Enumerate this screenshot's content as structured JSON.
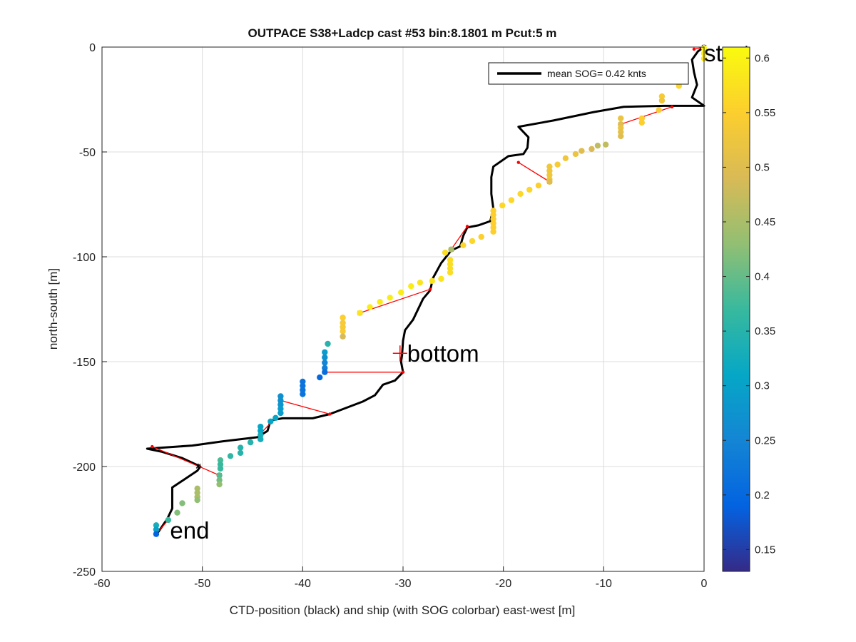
{
  "chart_data": {
    "type": "scatter",
    "title": "OUTPACE S38+Ladcp cast #53 bin:8.1801 m  Pcut:5 m",
    "xlabel": "CTD-position (black) and ship (with SOG colorbar) east-west [m]",
    "ylabel": "north-south [m]",
    "xlim": [
      -60,
      0
    ],
    "ylim": [
      -250,
      0
    ],
    "xticks": [
      "-60",
      "-50",
      "-40",
      "-30",
      "-20",
      "-10",
      "0"
    ],
    "yticks": [
      "0",
      "-50",
      "-100",
      "-150",
      "-200",
      "-250"
    ],
    "grid": true,
    "legend": {
      "position": "top-right",
      "entry": "mean SOG=  0.42 knts",
      "color": "#000000"
    },
    "colorbar": {
      "label_ticks": [
        "0.6",
        "0.55",
        "0.5",
        "0.45",
        "0.4",
        "0.35",
        "0.3",
        "0.25",
        "0.2",
        "0.15"
      ],
      "range": [
        0.13,
        0.61
      ],
      "colormap": [
        "#352a87",
        "#0363e1",
        "#1485d4",
        "#06a7c6",
        "#38b99e",
        "#92bf73",
        "#d9ba56",
        "#fcce2e",
        "#f9fb0e"
      ]
    },
    "annotations": [
      {
        "text": "start",
        "x": 0,
        "y": 0
      },
      {
        "text": "bottom",
        "x": -30.3,
        "y": -146
      },
      {
        "text": "end",
        "x": -54.5,
        "y": -232
      }
    ],
    "series": [
      {
        "kind": "ctd_track",
        "color": "#000000",
        "points": [
          [
            0,
            0
          ],
          [
            -0.6,
            -2
          ],
          [
            -1.2,
            -6
          ],
          [
            -1,
            -12
          ],
          [
            -0.7,
            -18
          ],
          [
            -1.2,
            -24
          ],
          [
            0,
            -28
          ],
          [
            -4,
            -28
          ],
          [
            -8,
            -28.5
          ],
          [
            -11,
            -31
          ],
          [
            -15,
            -35
          ],
          [
            -18.5,
            -38
          ],
          [
            -17.5,
            -43
          ],
          [
            -17.6,
            -48
          ],
          [
            -18,
            -51
          ],
          [
            -19.5,
            -52
          ],
          [
            -21,
            -57
          ],
          [
            -21.2,
            -62
          ],
          [
            -21.2,
            -70
          ],
          [
            -21,
            -77
          ],
          [
            -21.3,
            -83
          ],
          [
            -22.5,
            -85
          ],
          [
            -23.6,
            -86
          ],
          [
            -24,
            -90
          ],
          [
            -24.3,
            -95
          ],
          [
            -25.2,
            -97
          ],
          [
            -26.2,
            -103
          ],
          [
            -27,
            -110
          ],
          [
            -27.3,
            -116
          ],
          [
            -28,
            -120
          ],
          [
            -29,
            -130
          ],
          [
            -29.8,
            -135
          ],
          [
            -30,
            -140
          ],
          [
            -30.1,
            -147
          ],
          [
            -30.2,
            -150
          ],
          [
            -30,
            -155
          ],
          [
            -30.8,
            -159
          ],
          [
            -32,
            -161
          ],
          [
            -32.8,
            -166
          ],
          [
            -34,
            -169
          ],
          [
            -37.3,
            -175
          ],
          [
            -39,
            -177
          ],
          [
            -42,
            -177
          ],
          [
            -43.2,
            -178
          ],
          [
            -43.5,
            -183
          ],
          [
            -44.5,
            -186
          ],
          [
            -48,
            -188
          ],
          [
            -51,
            -190
          ],
          [
            -55.5,
            -191.5
          ],
          [
            -54,
            -193
          ],
          [
            -52,
            -196
          ],
          [
            -50.2,
            -200
          ],
          [
            -50.5,
            -202
          ],
          [
            -53,
            -210
          ],
          [
            -53,
            -220
          ],
          [
            -53.5,
            -225
          ],
          [
            -54.5,
            -232
          ]
        ]
      },
      {
        "kind": "ctd_ship_links",
        "color": "#ff0000",
        "segments": [
          [
            [
              -1,
              -1
            ],
            [
              0,
              0
            ]
          ],
          [
            [
              -3.2,
              -28.5
            ],
            [
              -8.3,
              -36.8
            ]
          ],
          [
            [
              -18.5,
              -55
            ],
            [
              -15.4,
              -64.2
            ]
          ],
          [
            [
              -23.6,
              -85.5
            ],
            [
              -25.2,
              -96.5
            ]
          ],
          [
            [
              -27.3,
              -115.5
            ],
            [
              -34.3,
              -126.8
            ]
          ],
          [
            [
              -30,
              -155
            ],
            [
              -37.8,
              -155
            ]
          ],
          [
            [
              -37.3,
              -175
            ],
            [
              -42.2,
              -168.5
            ]
          ],
          [
            [
              -42.7,
              -176.8
            ],
            [
              -44.2,
              -184.3
            ]
          ],
          [
            [
              -50.4,
              -199.8
            ],
            [
              -48.3,
              -204.2
            ]
          ],
          [
            [
              -55,
              -190.5
            ],
            [
              -50.4,
              -199.8
            ]
          ],
          [
            [
              -53.4,
              -225.5
            ],
            [
              -54.6,
              -232.2
            ]
          ]
        ]
      },
      {
        "kind": "ship_track_sog",
        "points": [
          [
            0,
            -0.5,
            0.6
          ],
          [
            0,
            -3,
            0.59
          ],
          [
            0,
            -5.5,
            0.58
          ],
          [
            -2.5,
            -18.5,
            0.56
          ],
          [
            -4.2,
            -23.5,
            0.54
          ],
          [
            -4.2,
            -25.5,
            0.53
          ],
          [
            -4.5,
            -30,
            0.54
          ],
          [
            -6.2,
            -34,
            0.55
          ],
          [
            -6.2,
            -36,
            0.55
          ],
          [
            -8.3,
            -34,
            0.52
          ],
          [
            -8.3,
            -36.8,
            0.5
          ],
          [
            -8.3,
            -38.5,
            0.52
          ],
          [
            -8.3,
            -40.5,
            0.51
          ],
          [
            -8.3,
            -42.5,
            0.5
          ],
          [
            -9.8,
            -46.5,
            0.47
          ],
          [
            -10.6,
            -47,
            0.47
          ],
          [
            -11.2,
            -48.6,
            0.49
          ],
          [
            -12.2,
            -49.5,
            0.5
          ],
          [
            -12.8,
            -51,
            0.52
          ],
          [
            -13.8,
            -53,
            0.53
          ],
          [
            -14.6,
            -56,
            0.54
          ],
          [
            -15.4,
            -57,
            0.53
          ],
          [
            -15.4,
            -59,
            0.53
          ],
          [
            -15.4,
            -61,
            0.53
          ],
          [
            -15.4,
            -63,
            0.53
          ],
          [
            -15.4,
            -64.2,
            0.5
          ],
          [
            -16.5,
            -66,
            0.55
          ],
          [
            -17.4,
            -68,
            0.56
          ],
          [
            -18.3,
            -70,
            0.56
          ],
          [
            -19.2,
            -73,
            0.56
          ],
          [
            -20.1,
            -75.5,
            0.56
          ],
          [
            -21,
            -78,
            0.55
          ],
          [
            -21,
            -80,
            0.55
          ],
          [
            -21,
            -82,
            0.55
          ],
          [
            -21,
            -84,
            0.55
          ],
          [
            -21,
            -86,
            0.55
          ],
          [
            -21,
            -88,
            0.55
          ],
          [
            -22.2,
            -90.5,
            0.55
          ],
          [
            -23.1,
            -92.5,
            0.56
          ],
          [
            -24,
            -94.5,
            0.56
          ],
          [
            -25.2,
            -96.5,
            0.45
          ],
          [
            -25.8,
            -98,
            0.57
          ],
          [
            -25.3,
            -101.5,
            0.57
          ],
          [
            -25.3,
            -103.5,
            0.57
          ],
          [
            -25.3,
            -105.5,
            0.57
          ],
          [
            -25.3,
            -107.5,
            0.57
          ],
          [
            -26.2,
            -110.5,
            0.58
          ],
          [
            -27.1,
            -111.5,
            0.58
          ],
          [
            -28.3,
            -112.3,
            0.58
          ],
          [
            -29.2,
            -114,
            0.59
          ],
          [
            -30.2,
            -117,
            0.59
          ],
          [
            -31.3,
            -119.5,
            0.59
          ],
          [
            -32.3,
            -121.5,
            0.59
          ],
          [
            -33.3,
            -124,
            0.59
          ],
          [
            -34.3,
            -126.8,
            0.58
          ],
          [
            -36,
            -129,
            0.55
          ],
          [
            -36,
            -131.5,
            0.54
          ],
          [
            -36,
            -133.5,
            0.54
          ],
          [
            -36,
            -135.5,
            0.54
          ],
          [
            -36,
            -138,
            0.49
          ],
          [
            -37.5,
            -141.5,
            0.35
          ],
          [
            -37.8,
            -145.5,
            0.29
          ],
          [
            -37.8,
            -148,
            0.27
          ],
          [
            -37.8,
            -150.5,
            0.25
          ],
          [
            -37.8,
            -153,
            0.24
          ],
          [
            -37.8,
            -155,
            0.21
          ],
          [
            -38.3,
            -157.5,
            0.2
          ],
          [
            -40,
            -159.5,
            0.22
          ],
          [
            -40,
            -161.5,
            0.22
          ],
          [
            -40,
            -163.5,
            0.22
          ],
          [
            -40,
            -165.5,
            0.22
          ],
          [
            -42.2,
            -166.5,
            0.27
          ],
          [
            -42.2,
            -168.5,
            0.27
          ],
          [
            -42.2,
            -170.5,
            0.28
          ],
          [
            -42.2,
            -172.5,
            0.29
          ],
          [
            -42.2,
            -174.5,
            0.29
          ],
          [
            -42.7,
            -176.8,
            0.31
          ],
          [
            -43.2,
            -178.5,
            0.31
          ],
          [
            -44.2,
            -181,
            0.31
          ],
          [
            -44.2,
            -183,
            0.31
          ],
          [
            -44.2,
            -185,
            0.33
          ],
          [
            -44.2,
            -187,
            0.33
          ],
          [
            -45.2,
            -188.5,
            0.35
          ],
          [
            -46.2,
            -191,
            0.35
          ],
          [
            -46.2,
            -193.5,
            0.35
          ],
          [
            -47.2,
            -195,
            0.36
          ],
          [
            -48.2,
            -197,
            0.38
          ],
          [
            -48.2,
            -199,
            0.37
          ],
          [
            -48.2,
            -201,
            0.37
          ],
          [
            -48.3,
            -204.2,
            0.39
          ],
          [
            -48.3,
            -206.5,
            0.41
          ],
          [
            -48.3,
            -208.5,
            0.43
          ],
          [
            -50.5,
            -210.5,
            0.45
          ],
          [
            -50.5,
            -212.5,
            0.45
          ],
          [
            -50.5,
            -214.5,
            0.45
          ],
          [
            -50.5,
            -216,
            0.43
          ],
          [
            -52,
            -217.5,
            0.42
          ],
          [
            -52.5,
            -222,
            0.42
          ],
          [
            -53.4,
            -225.5,
            0.37
          ],
          [
            -54.6,
            -228,
            0.33
          ],
          [
            -54.6,
            -230,
            0.3
          ],
          [
            -54.6,
            -232.2,
            0.19
          ]
        ]
      }
    ]
  }
}
